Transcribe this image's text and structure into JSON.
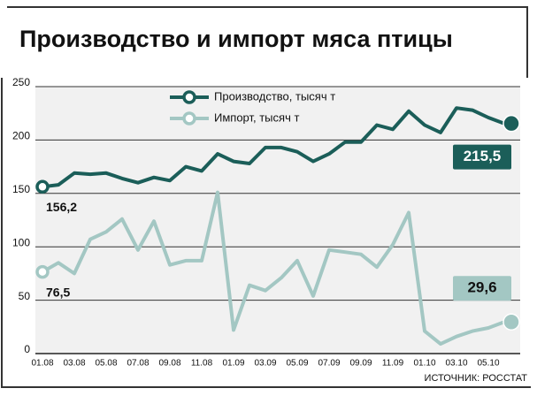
{
  "chart_data": {
    "type": "line",
    "title": "Производство и импорт мяса птицы",
    "source": "ИСТОЧНИК: РОССТАТ",
    "categories": [
      "01.08",
      null,
      "03.08",
      null,
      "05.08",
      null,
      "07.08",
      null,
      "09.08",
      null,
      "11.08",
      null,
      "01.09",
      null,
      "03.09",
      null,
      "05.09",
      null,
      "07.09",
      null,
      "09.09",
      null,
      "11.09",
      null,
      "01.10",
      null,
      "03.10",
      null,
      "05.10",
      null
    ],
    "series": [
      {
        "name": "Производство, тысяч т",
        "color": "#1b5e59",
        "values": [
          156.2,
          158,
          169,
          168,
          169,
          164,
          160,
          165,
          162,
          175,
          171,
          187,
          180,
          178,
          193,
          193,
          189,
          180,
          187,
          198,
          198,
          214,
          210,
          227,
          214,
          207,
          230,
          228,
          221,
          215.5
        ],
        "value_labels": [
          "156,2",
          null,
          null,
          null,
          null,
          null,
          null,
          null,
          null,
          null,
          null,
          null,
          null,
          null,
          null,
          null,
          null,
          null,
          null,
          null,
          null,
          null,
          null,
          null,
          null,
          null,
          null,
          null,
          null,
          "215,5"
        ]
      },
      {
        "name": "Импорт, тысяч т",
        "color": "#a3c7c3",
        "values": [
          76.5,
          85,
          75,
          107,
          114,
          126,
          97,
          124,
          83,
          87,
          87,
          151,
          22,
          64,
          59,
          71,
          87,
          54,
          97,
          95,
          93,
          81,
          102,
          132,
          21,
          9,
          16,
          21,
          24,
          29.6
        ],
        "value_labels": [
          "76,5",
          null,
          null,
          null,
          null,
          null,
          null,
          null,
          null,
          null,
          null,
          null,
          null,
          null,
          null,
          null,
          null,
          null,
          null,
          null,
          null,
          null,
          null,
          null,
          null,
          null,
          null,
          null,
          null,
          "29,6"
        ]
      }
    ],
    "ylim": [
      0,
      250
    ],
    "yticks": [
      0,
      50,
      100,
      150,
      200,
      250
    ],
    "grid": true
  }
}
